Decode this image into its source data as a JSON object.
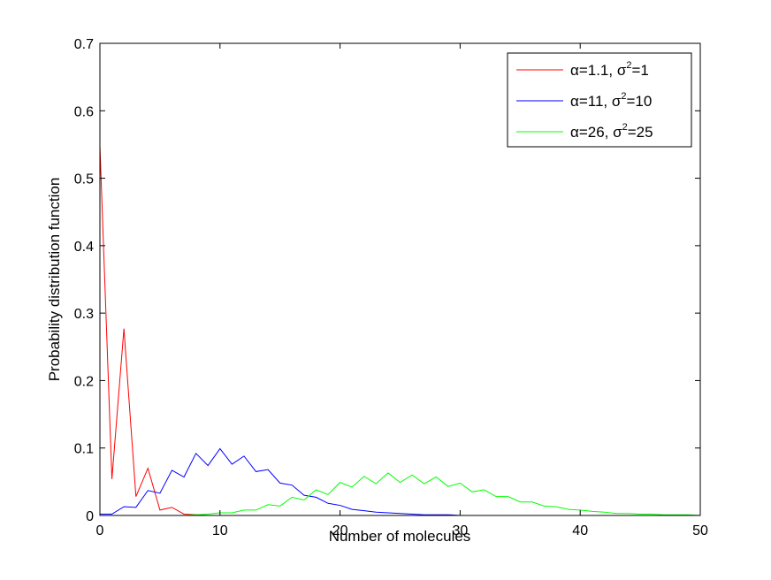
{
  "chart_data": {
    "type": "line",
    "xlabel": "Number of molecules",
    "ylabel": "Probability distribution function",
    "xlim": [
      0,
      50
    ],
    "ylim": [
      0,
      0.7
    ],
    "xticks": [
      0,
      10,
      20,
      30,
      40,
      50
    ],
    "xtick_labels": [
      "0",
      "10",
      "20",
      "30",
      "40",
      "50"
    ],
    "yticks": [
      0,
      0.1,
      0.2,
      0.3,
      0.4,
      0.5,
      0.6,
      0.7
    ],
    "ytick_labels": [
      "0",
      "0.1",
      "0.2",
      "0.3",
      "0.4",
      "0.5",
      "0.6",
      "0.7"
    ],
    "grid": false,
    "legend_position": "top-right",
    "x": [
      0,
      1,
      2,
      3,
      4,
      5,
      6,
      7,
      8,
      9,
      10,
      11,
      12,
      13,
      14,
      15,
      16,
      17,
      18,
      19,
      20,
      21,
      22,
      23,
      24,
      25,
      26,
      27,
      28,
      29,
      30,
      31,
      32,
      33,
      34,
      35,
      36,
      37,
      38,
      39,
      40,
      41,
      42,
      43,
      44,
      45,
      46,
      47,
      48,
      49,
      50
    ],
    "series": [
      {
        "legend": {
          "alpha": "1.1",
          "sigma2": "1"
        },
        "color": "#ff0000",
        "values": [
          0.548,
          0.054,
          0.277,
          0.028,
          0.07,
          0.008,
          0.012,
          0.002,
          0.001,
          0,
          0,
          0,
          0,
          0,
          0,
          0,
          0,
          0,
          0,
          0,
          0,
          0,
          0,
          0,
          0,
          0,
          0,
          0,
          0,
          0,
          0,
          0,
          0,
          0,
          0,
          0,
          0,
          0,
          0,
          0,
          0,
          0,
          0,
          0,
          0,
          0,
          0,
          0,
          0,
          0,
          0
        ]
      },
      {
        "legend": {
          "alpha": "11",
          "sigma2": "10"
        },
        "color": "#0000ff",
        "values": [
          0.002,
          0.002,
          0.013,
          0.012,
          0.037,
          0.033,
          0.067,
          0.057,
          0.092,
          0.074,
          0.099,
          0.076,
          0.088,
          0.065,
          0.068,
          0.048,
          0.045,
          0.03,
          0.027,
          0.018,
          0.015,
          0.009,
          0.007,
          0.005,
          0.004,
          0.003,
          0.002,
          0.001,
          0.001,
          0.001,
          0,
          0,
          0,
          0,
          0,
          0,
          0,
          0,
          0,
          0,
          0,
          0,
          0,
          0,
          0,
          0,
          0,
          0,
          0,
          0,
          0
        ]
      },
      {
        "legend": {
          "alpha": "26",
          "sigma2": "25"
        },
        "color": "#00ff00",
        "values": [
          0,
          0,
          0,
          0,
          0,
          0,
          0,
          0,
          0.001,
          0.002,
          0.004,
          0.004,
          0.008,
          0.008,
          0.016,
          0.014,
          0.027,
          0.023,
          0.038,
          0.031,
          0.049,
          0.042,
          0.058,
          0.047,
          0.063,
          0.049,
          0.06,
          0.047,
          0.057,
          0.043,
          0.048,
          0.035,
          0.038,
          0.028,
          0.028,
          0.02,
          0.02,
          0.014,
          0.013,
          0.009,
          0.008,
          0.006,
          0.005,
          0.003,
          0.003,
          0.002,
          0.002,
          0.001,
          0.001,
          0.001,
          0
        ]
      }
    ]
  }
}
